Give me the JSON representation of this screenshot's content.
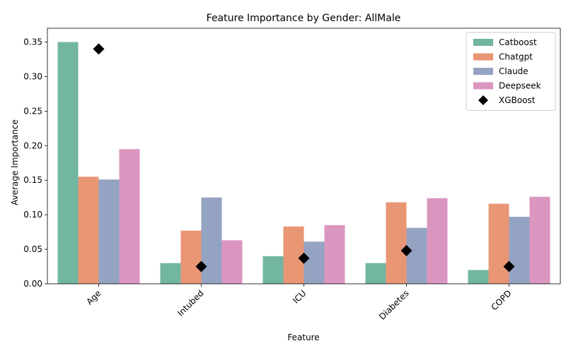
{
  "chart_data": {
    "type": "bar",
    "title": "Feature Importance by Gender: AllMale",
    "xlabel": "Feature",
    "ylabel": "Average Importance",
    "ylim": [
      0,
      0.37
    ],
    "yticks": [
      0.0,
      0.05,
      0.1,
      0.15,
      0.2,
      0.25,
      0.3,
      0.35
    ],
    "categories": [
      "Age",
      "Intubed",
      "ICU",
      "Diabetes",
      "COPD"
    ],
    "series": [
      {
        "name": "Catboost",
        "color": "#72b6a1",
        "values": [
          0.35,
          0.03,
          0.04,
          0.03,
          0.02
        ]
      },
      {
        "name": "Chatgpt",
        "color": "#e99675",
        "values": [
          0.155,
          0.077,
          0.083,
          0.118,
          0.116
        ]
      },
      {
        "name": "Claude",
        "color": "#95a3c3",
        "values": [
          0.151,
          0.125,
          0.061,
          0.081,
          0.097
        ]
      },
      {
        "name": "Deepseek",
        "color": "#db96c0",
        "values": [
          0.195,
          0.063,
          0.085,
          0.124,
          0.126
        ]
      }
    ],
    "markers": {
      "name": "XGBoost",
      "color": "#000000",
      "shape": "diamond",
      "values": [
        0.34,
        0.025,
        0.037,
        0.048,
        0.025
      ]
    },
    "legend": "top-right",
    "grid": false
  }
}
